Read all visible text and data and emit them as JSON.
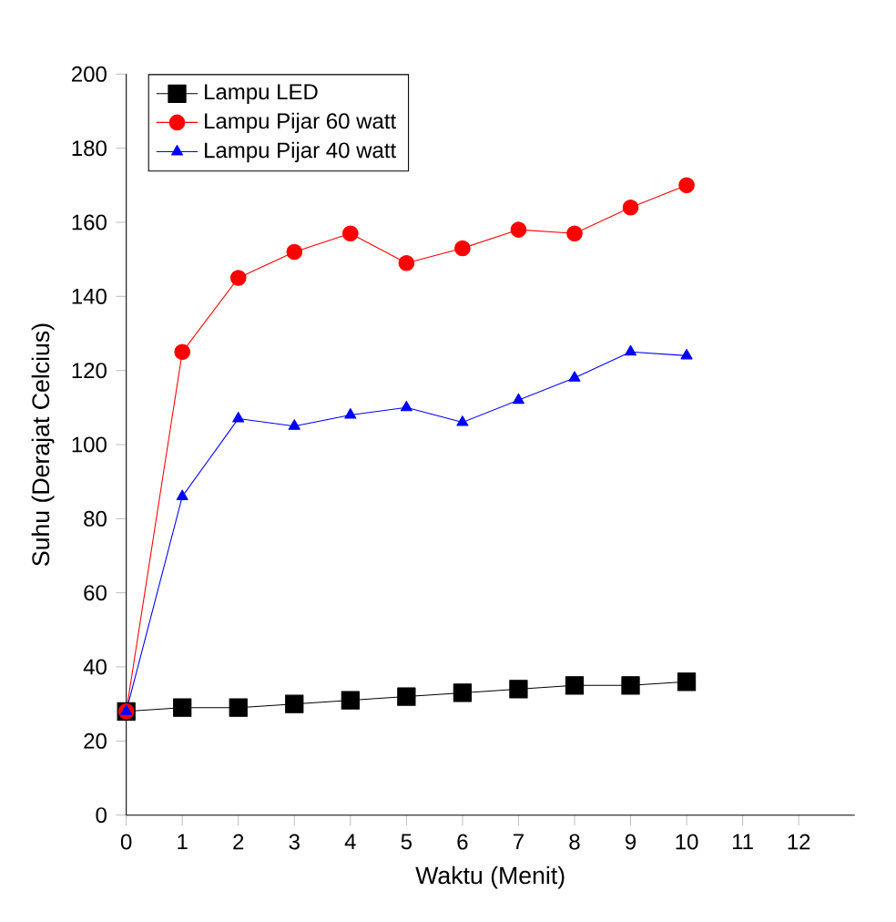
{
  "chart_data": {
    "type": "line",
    "xlabel": "Waktu (Menit)",
    "ylabel": "Suhu (Derajat Celcius)",
    "x": [
      0,
      1,
      2,
      3,
      4,
      5,
      6,
      7,
      8,
      9,
      10
    ],
    "series": [
      {
        "name": "Lampu LED",
        "color": "#000000",
        "marker": "square",
        "values": [
          28,
          29,
          29,
          30,
          31,
          32,
          33,
          34,
          35,
          35,
          36
        ]
      },
      {
        "name": "Lampu Pijar 60 watt",
        "color": "#ff0000",
        "marker": "circle",
        "values": [
          28,
          125,
          145,
          152,
          157,
          149,
          153,
          158,
          157,
          164,
          170
        ]
      },
      {
        "name": "Lampu Pijar 40 watt",
        "color": "#0000ff",
        "marker": "triangle",
        "values": [
          28,
          86,
          107,
          105,
          108,
          110,
          106,
          112,
          118,
          125,
          124
        ]
      }
    ],
    "xlim": [
      0,
      13
    ],
    "xticks": [
      0,
      1,
      2,
      3,
      4,
      5,
      6,
      7,
      8,
      9,
      10,
      11,
      12
    ],
    "ylim": [
      0,
      200
    ],
    "yticks": [
      0,
      20,
      40,
      60,
      80,
      100,
      120,
      140,
      160,
      180,
      200
    ],
    "grid": false,
    "legend": "top left"
  }
}
